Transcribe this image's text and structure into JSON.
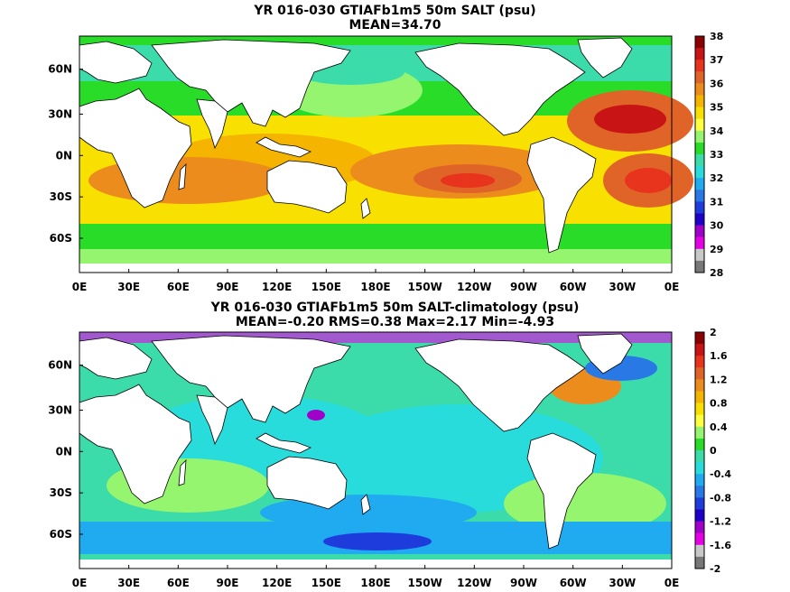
{
  "panels": [
    {
      "title": "YR 016-030 GTIAFb1m5 50m SALT (psu)",
      "subtitle": "MEAN=34.70",
      "lat_labels": [
        "60N",
        "30N",
        "0N",
        "30S",
        "60S"
      ],
      "lon_labels": [
        "0E",
        "30E",
        "60E",
        "90E",
        "120E",
        "150E",
        "180E",
        "150W",
        "120W",
        "90W",
        "60W",
        "30W",
        "0E"
      ],
      "colorbar": {
        "labels": [
          "38",
          "37",
          "36",
          "35",
          "34",
          "33",
          "32",
          "31",
          "30",
          "29",
          "28"
        ],
        "colors": [
          "#8b0000",
          "#c81414",
          "#e8341c",
          "#e06428",
          "#ec8c1c",
          "#f4b400",
          "#f8e000",
          "#ffff40",
          "#96f56e",
          "#28dc28",
          "#3cdcaa",
          "#28dcdc",
          "#20aaf0",
          "#2878e6",
          "#1e3cdc",
          "#1e00c8",
          "#a000c8",
          "#e600e6",
          "#c8c8c8",
          "#787878"
        ]
      }
    },
    {
      "title": "YR 016-030 GTIAFb1m5 50m SALT-climatology (psu)",
      "subtitle": "MEAN=-0.20   RMS=0.38   Max=2.17   Min=-4.93",
      "lat_labels": [
        "60N",
        "30N",
        "0N",
        "30S",
        "60S"
      ],
      "lon_labels": [
        "0E",
        "30E",
        "60E",
        "90E",
        "120E",
        "150E",
        "180E",
        "150W",
        "120W",
        "90W",
        "60W",
        "30W",
        "0E"
      ],
      "colorbar": {
        "labels": [
          "2",
          "1.6",
          "1.2",
          "0.8",
          "0.4",
          "0",
          "-0.4",
          "-0.8",
          "-1.2",
          "-1.6",
          "-2"
        ],
        "colors": [
          "#8b0000",
          "#c81414",
          "#e8341c",
          "#e06428",
          "#ec8c1c",
          "#f4b400",
          "#f8e000",
          "#ffff40",
          "#96f56e",
          "#28dc28",
          "#3cdcaa",
          "#28dcdc",
          "#20aaf0",
          "#2878e6",
          "#1e3cdc",
          "#1e00c8",
          "#a000c8",
          "#e600e6",
          "#c8c8c8",
          "#787878"
        ]
      }
    }
  ]
}
